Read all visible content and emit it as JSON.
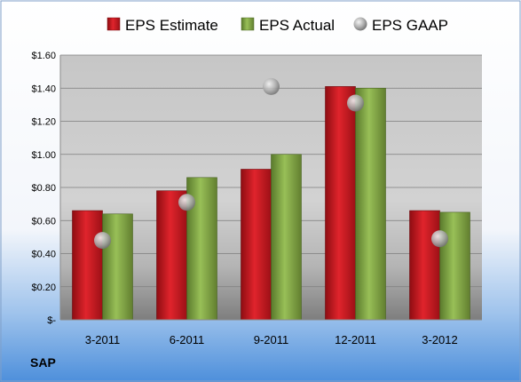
{
  "chart_data": {
    "type": "bar",
    "ticker": "SAP",
    "categories": [
      "3-2011",
      "6-2011",
      "9-2011",
      "12-2011",
      "3-2012"
    ],
    "series": [
      {
        "name": "EPS Estimate",
        "values": [
          0.66,
          0.78,
          0.91,
          1.41,
          0.66
        ],
        "color": "#c0141c"
      },
      {
        "name": "EPS Actual",
        "values": [
          0.64,
          0.86,
          1.0,
          1.4,
          0.65
        ],
        "color": "#7ba23f"
      }
    ],
    "markers": {
      "name": "EPS GAAP",
      "values": [
        0.48,
        0.71,
        1.41,
        1.31,
        0.49
      ],
      "color": "#a9a9a9"
    },
    "ylim": [
      0,
      1.6
    ],
    "yticks": [
      "$-",
      "$0.20",
      "$0.40",
      "$0.60",
      "$0.80",
      "$1.00",
      "$1.20",
      "$1.40",
      "$1.60"
    ],
    "grid": true,
    "legend": "top"
  }
}
